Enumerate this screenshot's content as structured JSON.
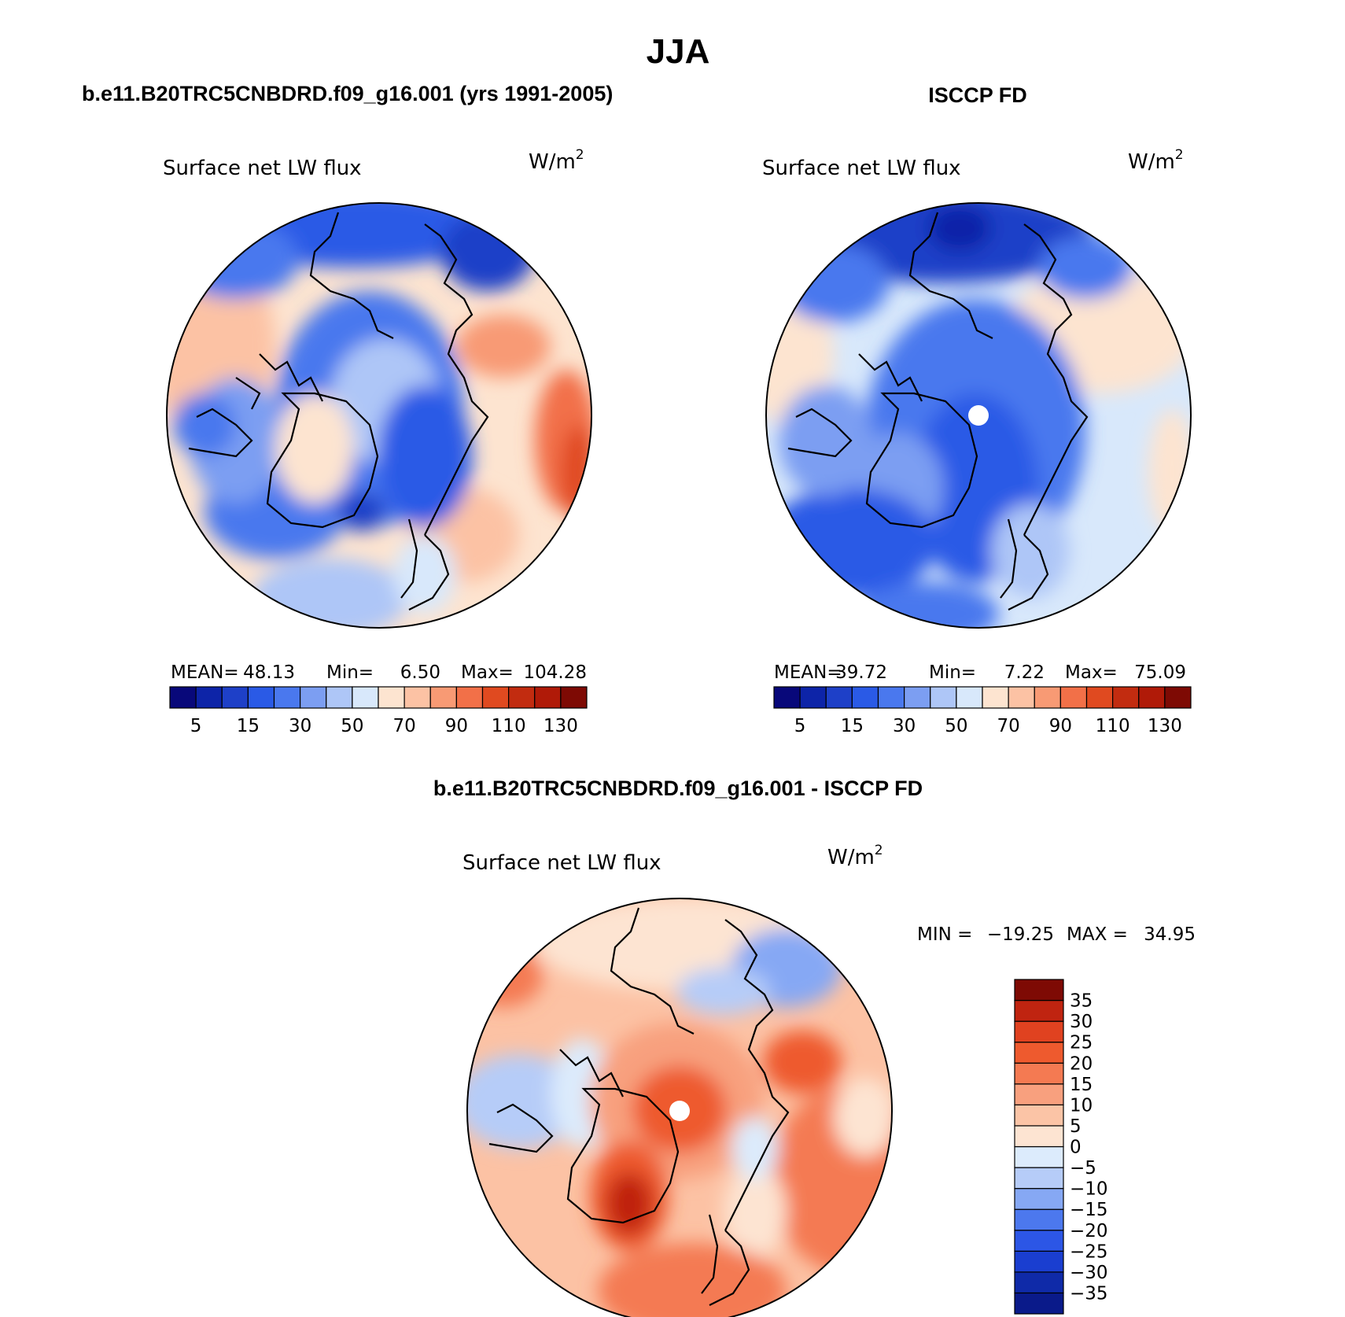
{
  "figure": {
    "title": "JJA",
    "panel_left_title": "b.e11.B20TRC5CNBDRD.f09_g16.001 (yrs 1991-2005)",
    "panel_right_title": "ISCCP FD",
    "panel_bottom_title": "b.e11.B20TRC5CNBDRD.f09_g16.001 - ISCCP FD",
    "variable": "Surface net LW flux",
    "units_base": "W/m",
    "units_exp": "2"
  },
  "stats": {
    "left": {
      "mean_label": "MEAN=",
      "mean": "48.13",
      "min_label": "Min=",
      "min": "6.50",
      "max_label": "Max=",
      "max": "104.28"
    },
    "right": {
      "mean_label": "MEAN=",
      "mean": "39.72",
      "min_label": "Min=",
      "min": "7.22",
      "max_label": "Max=",
      "max": "75.09"
    },
    "diff": {
      "min_label": "MIN =",
      "min": "−19.25",
      "max_label": "MAX =",
      "max": "34.95"
    }
  },
  "colors": {
    "abs_scale": [
      "#08087a",
      "#0d24a8",
      "#1e40c8",
      "#2a5ae6",
      "#4a78ee",
      "#7c9ef2",
      "#aec6f7",
      "#d8e8fb",
      "#fde4d0",
      "#fcc2a4",
      "#f89a74",
      "#f27048",
      "#e04a20",
      "#c22c10",
      "#b01a08",
      "#7e0a04"
    ],
    "diff_scale": [
      "#0a1a8a",
      "#0f2aa8",
      "#1a3ed0",
      "#2c56e6",
      "#4c78ee",
      "#86a8f4",
      "#b6ccf8",
      "#dcebfc",
      "#fde4d2",
      "#fbc4a6",
      "#f8a07e",
      "#f47a52",
      "#ee5a2e",
      "#e04220",
      "#c02410",
      "#7e0a04"
    ]
  },
  "chart_data": [
    {
      "type": "heatmap",
      "projection": "north polar stereographic",
      "title": "b.e11.B20TRC5CNBDRD.f09_g16.001 (yrs 1991-2005)",
      "variable": "Surface net LW flux",
      "units": "W/m2",
      "mean": 48.13,
      "min": 6.5,
      "max": 104.28,
      "contour_levels": [
        5,
        10,
        15,
        20,
        25,
        30,
        40,
        50,
        60,
        70,
        80,
        90,
        100,
        110,
        120,
        130
      ],
      "colorbar_tick_labels": [
        "5",
        "15",
        "30",
        "50",
        "70",
        "90",
        "110",
        "130"
      ]
    },
    {
      "type": "heatmap",
      "projection": "north polar stereographic",
      "title": "ISCCP FD",
      "variable": "Surface net LW flux",
      "units": "W/m2",
      "mean": 39.72,
      "min": 7.22,
      "max": 75.09,
      "contour_levels": [
        5,
        10,
        15,
        20,
        25,
        30,
        40,
        50,
        60,
        70,
        80,
        90,
        100,
        110,
        120,
        130
      ],
      "colorbar_tick_labels": [
        "5",
        "15",
        "30",
        "50",
        "70",
        "90",
        "110",
        "130"
      ]
    },
    {
      "type": "heatmap",
      "projection": "north polar stereographic",
      "title": "b.e11.B20TRC5CNBDRD.f09_g16.001 - ISCCP FD",
      "variable": "Surface net LW flux",
      "units": "W/m2",
      "min": -19.25,
      "max": 34.95,
      "contour_levels": [
        -35,
        -30,
        -25,
        -20,
        -15,
        -10,
        -5,
        0,
        5,
        10,
        15,
        20,
        25,
        30,
        35
      ],
      "colorbar_tick_labels": [
        "35",
        "30",
        "25",
        "20",
        "15",
        "10",
        "5",
        "0",
        "−5",
        "−10",
        "−15",
        "−20",
        "−25",
        "−30",
        "−35"
      ]
    }
  ]
}
